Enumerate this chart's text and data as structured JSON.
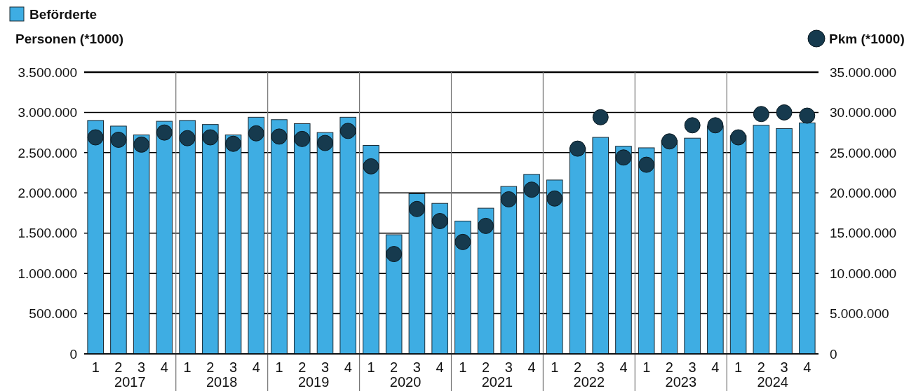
{
  "chart_data": {
    "type": "bar",
    "categories": [
      "1",
      "2",
      "3",
      "4",
      "1",
      "2",
      "3",
      "4",
      "1",
      "2",
      "3",
      "4",
      "1",
      "2",
      "3",
      "4",
      "1",
      "2",
      "3",
      "4",
      "1",
      "2",
      "3",
      "4",
      "1",
      "2",
      "3",
      "4",
      "1",
      "2",
      "3",
      "4"
    ],
    "series": [
      {
        "name": "Beförderte Personen (*1000)",
        "color": "#3eade3",
        "values": [
          2900000,
          2830000,
          2720000,
          2890000,
          2900000,
          2850000,
          2720000,
          2940000,
          2910000,
          2860000,
          2750000,
          2940000,
          2590000,
          1480000,
          1990000,
          1870000,
          1650000,
          1810000,
          2080000,
          2230000,
          2160000,
          2560000,
          2690000,
          2580000,
          2560000,
          2650000,
          2680000,
          2830000,
          2710000,
          2840000,
          2800000,
          2870000
        ]
      },
      {
        "name": "Pkm (*1000)",
        "type": "scatter",
        "axis": "y2",
        "color": "#163a4e",
        "values": [
          26900000,
          26600000,
          26000000,
          27500000,
          26800000,
          26900000,
          26100000,
          27400000,
          27000000,
          26700000,
          26200000,
          27700000,
          23300000,
          12400000,
          18000000,
          16500000,
          13900000,
          15900000,
          19200000,
          20400000,
          19300000,
          25500000,
          29400000,
          24400000,
          23500000,
          26400000,
          28400000,
          28400000,
          26900000,
          29800000,
          30000000,
          29600000
        ]
      }
    ],
    "ylim": [
      0,
      3500000
    ],
    "yticks": [
      {
        "value": 0,
        "label": "0"
      },
      {
        "value": 500000,
        "label": "500.000"
      },
      {
        "value": 1000000,
        "label": "1.000.000"
      },
      {
        "value": 1500000,
        "label": "1.500.000"
      },
      {
        "value": 2000000,
        "label": "2.000.000"
      },
      {
        "value": 2500000,
        "label": "2.500.000"
      },
      {
        "value": 3000000,
        "label": "3.000.000"
      },
      {
        "value": 3500000,
        "label": "3.500.000"
      }
    ],
    "y2lim": [
      0,
      35000000
    ],
    "y2ticks": [
      {
        "value": 0,
        "label": "0"
      },
      {
        "value": 5000000,
        "label": "5.000.000"
      },
      {
        "value": 10000000,
        "label": "10.000.000"
      },
      {
        "value": 15000000,
        "label": "15.000.000"
      },
      {
        "value": 20000000,
        "label": "20.000.000"
      },
      {
        "value": 25000000,
        "label": "25.000.000"
      },
      {
        "value": 30000000,
        "label": "30.000.000"
      },
      {
        "value": 35000000,
        "label": "35.000.000"
      }
    ],
    "annotations": [
      "2017",
      "2018",
      "2019",
      "2020",
      "2021",
      "2022",
      "2023",
      "2024"
    ],
    "grid": "y",
    "legend": "top",
    "marker": "circle"
  }
}
